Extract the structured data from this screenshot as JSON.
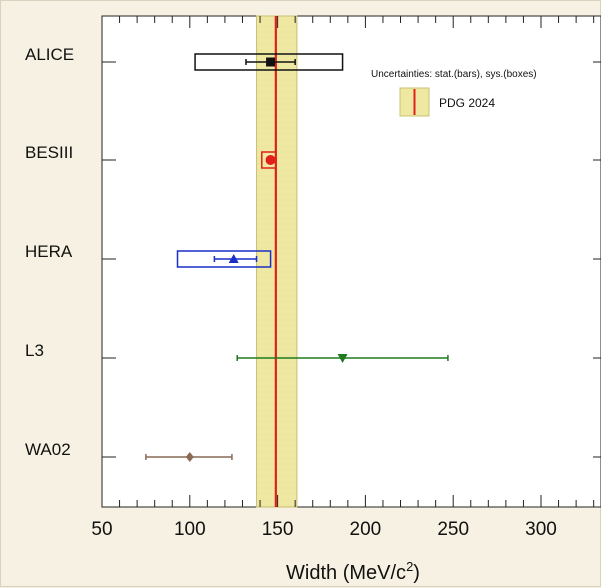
{
  "chart_data": {
    "type": "scatter",
    "xlabel": "Width (MeV/c²)",
    "xlabel_main": "Width (MeV/c",
    "xlabel_sup": "2",
    "xlabel_tail": ")",
    "xlim": [
      50,
      340
    ],
    "xticks": [
      50,
      100,
      150,
      200,
      250,
      300
    ],
    "xtick_labels": [
      "50",
      "100",
      "150",
      "200",
      "250",
      "300"
    ],
    "grid": false,
    "annotation": "Uncertainties: stat.(bars), sys.(boxes)",
    "legend": {
      "label": "PDG 2024",
      "placement": "top-right"
    },
    "reference": {
      "name": "PDG 2024",
      "value": 149,
      "band": [
        138,
        161
      ],
      "line_color": "#e0201a",
      "band_color": "#efe8a2"
    },
    "experiments": [
      {
        "label": "ALICE",
        "value": 146,
        "stat": [
          132,
          160
        ],
        "sys": [
          103,
          187
        ],
        "marker": "square",
        "color": "#111111"
      },
      {
        "label": "BESIII",
        "value": 146,
        "stat": [
          144,
          148
        ],
        "sys": [
          141,
          149
        ],
        "marker": "circle",
        "color": "#e0201a"
      },
      {
        "label": "HERA",
        "value": 125,
        "stat": [
          114,
          138
        ],
        "sys": [
          93,
          146
        ],
        "marker": "triangle-up",
        "color": "#1a2fc8"
      },
      {
        "label": "L3",
        "value": 187,
        "stat": [
          127,
          247
        ],
        "sys": null,
        "marker": "triangle-down",
        "color": "#1e7a1e"
      },
      {
        "label": "WA02",
        "value": 100,
        "stat": [
          75,
          124
        ],
        "sys": null,
        "marker": "diamond",
        "color": "#8a6a56"
      }
    ]
  }
}
